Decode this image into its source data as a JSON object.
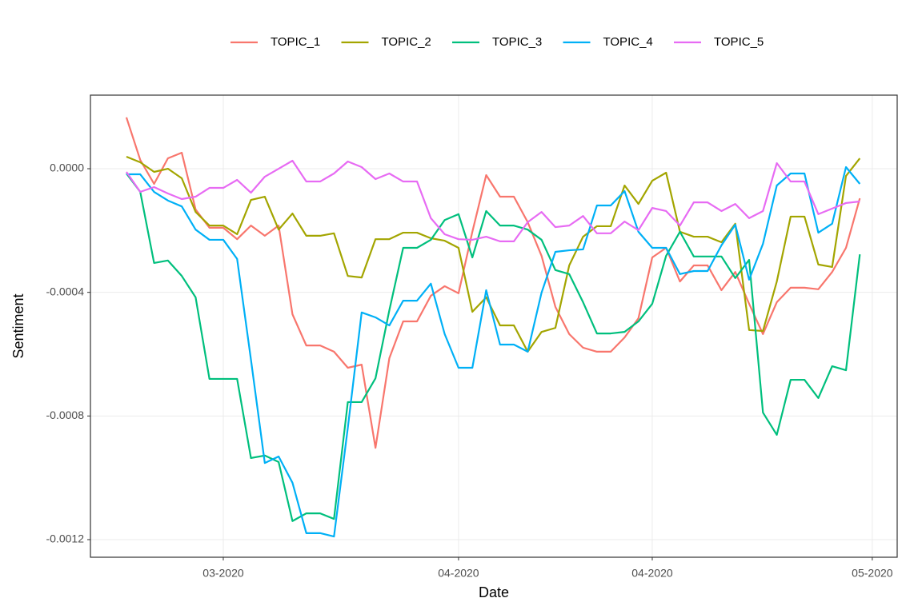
{
  "chart_data": {
    "type": "line",
    "x_label": "Date",
    "y_label": "Sentiment",
    "x": [
      0,
      1,
      2,
      3,
      4,
      5,
      6,
      7,
      8,
      9,
      10,
      11,
      12,
      13,
      14,
      15,
      16,
      17,
      18,
      19,
      20,
      21,
      22,
      23,
      24,
      25,
      26,
      27,
      28,
      29,
      30,
      31,
      32,
      33,
      34,
      35,
      36,
      37,
      38,
      39,
      40,
      41,
      42,
      43,
      44,
      45,
      46,
      47,
      48,
      49,
      50,
      51,
      52,
      53
    ],
    "xlim": [
      -2.6,
      55.7
    ],
    "xticks": [
      {
        "value": 7,
        "label": "03-2020"
      },
      {
        "value": 24,
        "label": "04-2020"
      },
      {
        "value": 38,
        "label": "04-2020"
      },
      {
        "value": 53.9,
        "label": "05-2020"
      }
    ],
    "ylim": [
      -0.001257,
      0.000238
    ],
    "yticks": [
      {
        "value": -0.0012,
        "label": "-0.0012"
      },
      {
        "value": -0.0008,
        "label": "-0.0008"
      },
      {
        "value": -0.0004,
        "label": "-0.0004"
      },
      {
        "value": 0,
        "label": "0.0000"
      }
    ],
    "grid": true,
    "legend": "top",
    "series": [
      {
        "name": "TOPIC_1",
        "color": "#F8766D",
        "values": [
          0.000166,
          2.84e-05,
          -4.91e-05,
          3.36e-05,
          5.17e-05,
          -0.000132,
          -0.000191,
          -0.000191,
          -0.000228,
          -0.000184,
          -0.000217,
          -0.000184,
          -0.000471,
          -0.000572,
          -0.000572,
          -0.000592,
          -0.000644,
          -0.000634,
          -0.000903,
          -0.000613,
          -0.000494,
          -0.000494,
          -0.000411,
          -0.00038,
          -0.000403,
          -0.000204,
          -2.07e-05,
          -9.05e-05,
          -9.05e-05,
          -0.000173,
          -0.000282,
          -0.000447,
          -0.000535,
          -0.000579,
          -0.000592,
          -0.000592,
          -0.000546,
          -0.000484,
          -0.000287,
          -0.000256,
          -0.000365,
          -0.000313,
          -0.000313,
          -0.000393,
          -0.000334,
          -0.000437,
          -0.000535,
          -0.000432,
          -0.000385,
          -0.000385,
          -0.00039,
          -0.000334,
          -0.000256,
          -9.57e-05
        ]
      },
      {
        "name": "TOPIC_2",
        "color": "#A3A500",
        "values": [
          3.88e-05,
          2.07e-05,
          -1.03e-05,
          0,
          -3.1e-05,
          -0.00014,
          -0.000184,
          -0.000184,
          -0.000212,
          -0.000101,
          -9.05e-05,
          -0.000197,
          -0.000145,
          -0.000217,
          -0.000217,
          -0.000209,
          -0.000347,
          -0.000352,
          -0.000228,
          -0.000228,
          -0.000207,
          -0.000207,
          -0.000225,
          -0.000233,
          -0.000256,
          -0.000463,
          -0.000416,
          -0.000507,
          -0.000507,
          -0.000592,
          -0.000528,
          -0.000515,
          -0.000313,
          -0.00022,
          -0.000186,
          -0.000186,
          -5.43e-05,
          -0.000114,
          -3.88e-05,
          -1.29e-05,
          -0.000204,
          -0.00022,
          -0.00022,
          -0.000238,
          -0.000178,
          -0.000522,
          -0.000525,
          -0.000365,
          -0.000155,
          -0.000155,
          -0.00031,
          -0.000318,
          -2.33e-05,
          3.36e-05
        ]
      },
      {
        "name": "TOPIC_3",
        "color": "#00BF7D",
        "values": [
          -1.55e-05,
          -7.5e-05,
          -0.000305,
          -0.000297,
          -0.000347,
          -0.000416,
          -0.00068,
          -0.00068,
          -0.00068,
          -0.000936,
          -0.000928,
          -0.000949,
          -0.00114,
          -0.001115,
          -0.001115,
          -0.001133,
          -0.000755,
          -0.000755,
          -0.000678,
          -0.000458,
          -0.000256,
          -0.000256,
          -0.00023,
          -0.000166,
          -0.000147,
          -0.000287,
          -0.000137,
          -0.000184,
          -0.000184,
          -0.000197,
          -0.00023,
          -0.000328,
          -0.000341,
          -0.000432,
          -0.000533,
          -0.000533,
          -0.000528,
          -0.000494,
          -0.000437,
          -0.000282,
          -0.000204,
          -0.000284,
          -0.000284,
          -0.000284,
          -0.000354,
          -0.000295,
          -0.000789,
          -0.000861,
          -0.000683,
          -0.000683,
          -0.000742,
          -0.000639,
          -0.000652,
          -0.000277
        ]
      },
      {
        "name": "TOPIC_4",
        "color": "#00B0F6",
        "values": [
          -1.81e-05,
          -1.81e-05,
          -7.5e-05,
          -0.000103,
          -0.000122,
          -0.000197,
          -0.00023,
          -0.00023,
          -0.000292,
          -0.000618,
          -0.000952,
          -0.000931,
          -0.001016,
          -0.001179,
          -0.001179,
          -0.00119,
          -0.000838,
          -0.000465,
          -0.000481,
          -0.000507,
          -0.000427,
          -0.000427,
          -0.000372,
          -0.000535,
          -0.000644,
          -0.000644,
          -0.000393,
          -0.000569,
          -0.000569,
          -0.000592,
          -0.000401,
          -0.000269,
          -0.000264,
          -0.000261,
          -0.000119,
          -0.000119,
          -7.24e-05,
          -0.000204,
          -0.000256,
          -0.000256,
          -0.000341,
          -0.000331,
          -0.000331,
          -0.000248,
          -0.000181,
          -0.000359,
          -0.000243,
          -5.43e-05,
          -1.55e-05,
          -1.55e-05,
          -0.000207,
          -0.000178,
          5.2e-06,
          -4.91e-05
        ]
      },
      {
        "name": "TOPIC_5",
        "color": "#E76BF3",
        "values": [
          -1.03e-05,
          -7.5e-05,
          -5.95e-05,
          -8.02e-05,
          -9.83e-05,
          -9.05e-05,
          -6.21e-05,
          -6.21e-05,
          -3.62e-05,
          -7.76e-05,
          -2.59e-05,
          0,
          2.59e-05,
          -4.14e-05,
          -4.14e-05,
          -1.55e-05,
          2.33e-05,
          5.2e-06,
          -3.36e-05,
          -1.55e-05,
          -4.14e-05,
          -4.14e-05,
          -0.00016,
          -0.000212,
          -0.000228,
          -0.00023,
          -0.00022,
          -0.000235,
          -0.000235,
          -0.000173,
          -0.00014,
          -0.000189,
          -0.000184,
          -0.000153,
          -0.000209,
          -0.000209,
          -0.000171,
          -0.000199,
          -0.000127,
          -0.000137,
          -0.000184,
          -0.000109,
          -0.000109,
          -0.000137,
          -0.000114,
          -0.00016,
          -0.000137,
          1.81e-05,
          -4.14e-05,
          -4.14e-05,
          -0.000147,
          -0.000129,
          -0.000111,
          -0.000106
        ]
      }
    ]
  }
}
